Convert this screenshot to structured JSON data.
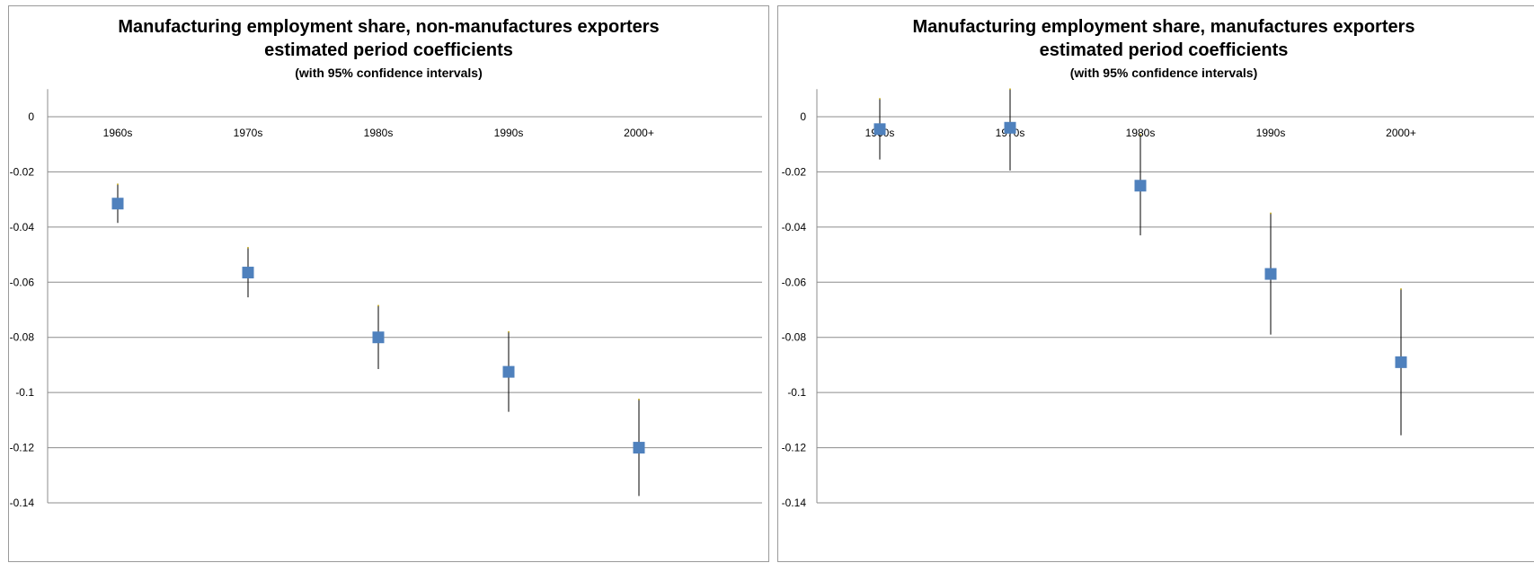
{
  "chart_data": [
    {
      "type": "scatter",
      "title": "Manufacturing employment share, non-manufactures exporters",
      "subtitle": "estimated period coefficients",
      "note": "(with 95% confidence intervals)",
      "categories": [
        "1960s",
        "1970s",
        "1980s",
        "1990s",
        "2000+"
      ],
      "values": [
        -0.0315,
        -0.0565,
        -0.08,
        -0.0925,
        -0.12
      ],
      "ci_upper": [
        -0.0245,
        -0.0475,
        -0.0685,
        -0.078,
        -0.1025
      ],
      "ci_lower": [
        -0.0385,
        -0.0655,
        -0.0915,
        -0.107,
        -0.1375
      ],
      "ylim": [
        -0.14,
        0.01
      ],
      "yticks": [
        "0",
        "-0.02",
        "-0.04",
        "-0.06",
        "-0.08",
        "-0.1",
        "-0.12",
        "-0.14"
      ],
      "grid": true,
      "marker_color": "#4f81bd"
    },
    {
      "type": "scatter",
      "title": "Manufacturing employment share, manufactures exporters",
      "subtitle": "estimated period coefficients",
      "note": "(with 95% confidence intervals)",
      "categories": [
        "1960s",
        "1970s",
        "1980s",
        "1990s",
        "2000+"
      ],
      "values": [
        -0.0045,
        -0.004,
        -0.025,
        -0.057,
        -0.089
      ],
      "ci_upper": [
        0.0065,
        0.01,
        -0.0065,
        -0.035,
        -0.0625
      ],
      "ci_lower": [
        -0.0155,
        -0.0195,
        -0.043,
        -0.079,
        -0.1155
      ],
      "ylim": [
        -0.14,
        0.01
      ],
      "yticks": [
        "0",
        "-0.02",
        "-0.04",
        "-0.06",
        "-0.08",
        "-0.1",
        "-0.12",
        "-0.14"
      ],
      "grid": true,
      "marker_color": "#4f81bd"
    }
  ]
}
